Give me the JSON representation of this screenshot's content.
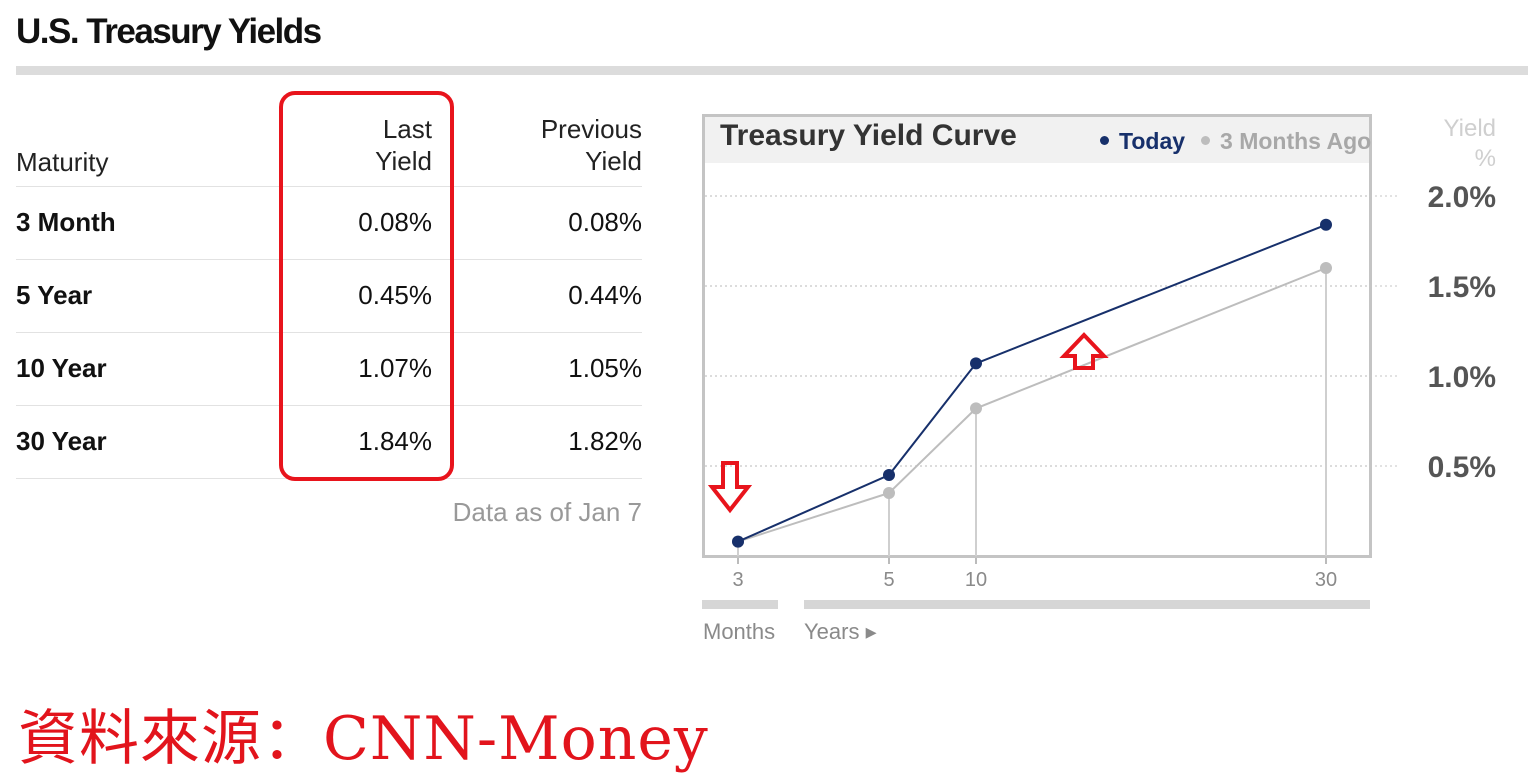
{
  "page": {
    "title": "U.S. Treasury Yields",
    "source_caption": "資料來源：CNN-Money"
  },
  "table": {
    "headers": {
      "maturity": "Maturity",
      "last_line1": "Last",
      "last_line2": "Yield",
      "previous_line1": "Previous",
      "previous_line2": "Yield"
    },
    "rows": [
      {
        "maturity": "3 Month",
        "last": "0.08%",
        "previous": "0.08%"
      },
      {
        "maturity": "5 Year",
        "last": "0.45%",
        "previous": "0.44%"
      },
      {
        "maturity": "10 Year",
        "last": "1.07%",
        "previous": "1.05%"
      },
      {
        "maturity": "30 Year",
        "last": "1.84%",
        "previous": "1.82%"
      }
    ],
    "note": "Data as of Jan 7"
  },
  "chart_data": {
    "type": "line",
    "title": "Treasury Yield Curve",
    "categories": [
      "3",
      "5",
      "10",
      "30"
    ],
    "series": [
      {
        "name": "Today",
        "color": "#17306b",
        "values": [
          0.08,
          0.45,
          1.07,
          1.84
        ]
      },
      {
        "name": "3 Months Ago",
        "color": "#bdbdbd",
        "values": [
          0.08,
          0.35,
          0.82,
          1.6
        ]
      }
    ],
    "ylabel_line1": "Yield",
    "ylabel_line2": "%",
    "yticks": [
      "2.0%",
      "1.5%",
      "1.0%",
      "0.5%"
    ],
    "ytick_values": [
      2.0,
      1.5,
      1.0,
      0.5
    ],
    "ylim": [
      0,
      2.25
    ],
    "x_unit_months": "Months",
    "x_unit_years": "Years ▸",
    "grid": true,
    "legend_position": "top-right",
    "annotations": [
      "red-down-arrow near 3 Months",
      "red-up-arrow above Today line between 10 and 30"
    ]
  }
}
